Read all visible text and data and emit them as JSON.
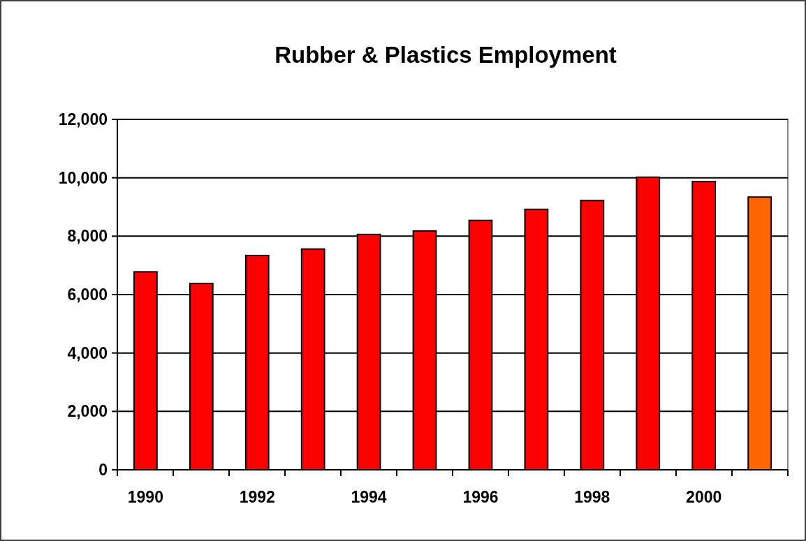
{
  "chart_data": {
    "type": "bar",
    "title": "Rubber & Plastics Employment",
    "categories": [
      "1990",
      null,
      "1992",
      null,
      "1994",
      null,
      "1996",
      null,
      "1998",
      null,
      "2000",
      null
    ],
    "values": [
      6780,
      6380,
      7340,
      7560,
      8060,
      8180,
      8540,
      8920,
      9220,
      10020,
      9870,
      9340
    ],
    "colors": [
      "#ff0000",
      "#ff0000",
      "#ff0000",
      "#ff0000",
      "#ff0000",
      "#ff0000",
      "#ff0000",
      "#ff0000",
      "#ff0000",
      "#ff0000",
      "#ff0000",
      "#ff6600"
    ],
    "ylim": [
      0,
      12000
    ],
    "yticks": [
      {
        "value": 0,
        "label": "0"
      },
      {
        "value": 2000,
        "label": "2,000"
      },
      {
        "value": 4000,
        "label": "4,000"
      },
      {
        "value": 6000,
        "label": "6,000"
      },
      {
        "value": 8000,
        "label": "8,000"
      },
      {
        "value": 10000,
        "label": "10,000"
      },
      {
        "value": 12000,
        "label": "12,000"
      }
    ],
    "grid": "y"
  }
}
